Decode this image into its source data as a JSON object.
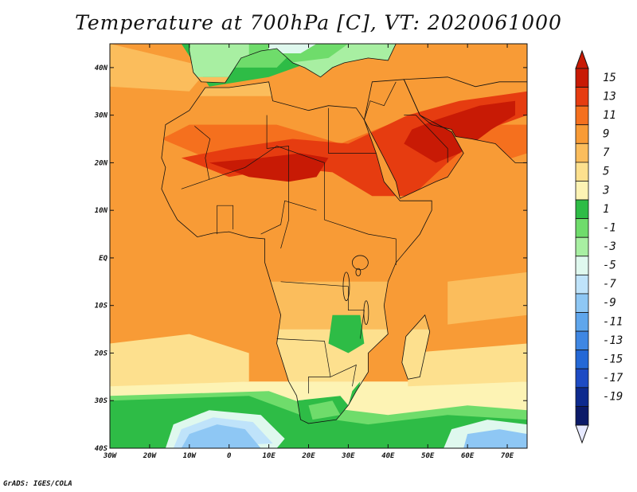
{
  "title": "Temperature at 700hPa [C], VT: 2020061000",
  "credit": "GrADS: IGES/COLA",
  "map": {
    "lon_range": [
      -30,
      75
    ],
    "lat_range": [
      -40,
      45
    ],
    "lon_ticks": [
      {
        "value": -30,
        "label": "30W"
      },
      {
        "value": -20,
        "label": "20W"
      },
      {
        "value": -10,
        "label": "10W"
      },
      {
        "value": 0,
        "label": "0"
      },
      {
        "value": 10,
        "label": "10E"
      },
      {
        "value": 20,
        "label": "20E"
      },
      {
        "value": 30,
        "label": "30E"
      },
      {
        "value": 40,
        "label": "40E"
      },
      {
        "value": 50,
        "label": "50E"
      },
      {
        "value": 60,
        "label": "60E"
      },
      {
        "value": 70,
        "label": "70E"
      }
    ],
    "lat_ticks": [
      {
        "value": 40,
        "label": "40N"
      },
      {
        "value": 30,
        "label": "30N"
      },
      {
        "value": 20,
        "label": "20N"
      },
      {
        "value": 10,
        "label": "10N"
      },
      {
        "value": 0,
        "label": "EQ"
      },
      {
        "value": -10,
        "label": "10S"
      },
      {
        "value": -20,
        "label": "20S"
      },
      {
        "value": -30,
        "label": "30S"
      },
      {
        "value": -40,
        "label": "40S"
      }
    ]
  },
  "colorbar": {
    "labels": [
      "15",
      "13",
      "11",
      "9",
      "7",
      "5",
      "3",
      "1",
      "-1",
      "-3",
      "-5",
      "-7",
      "-9",
      "-11",
      "-13",
      "-15",
      "-17",
      "-19"
    ],
    "colors": [
      "#c81a05",
      "#e63c10",
      "#f5701e",
      "#f89b36",
      "#fbbd5c",
      "#fde08e",
      "#fdf3b4",
      "#2ebc46",
      "#6fdc6b",
      "#a8efa2",
      "#dff8ee",
      "#bfe3fa",
      "#8ec7f4",
      "#5fa6ec",
      "#3f87e3",
      "#2468d6",
      "#1d4bc4",
      "#0d2a8e",
      "#0b1a68"
    ],
    "top_arrow_color": "#c81a05",
    "bottom_arrow_color": "#e6e9ff"
  }
}
